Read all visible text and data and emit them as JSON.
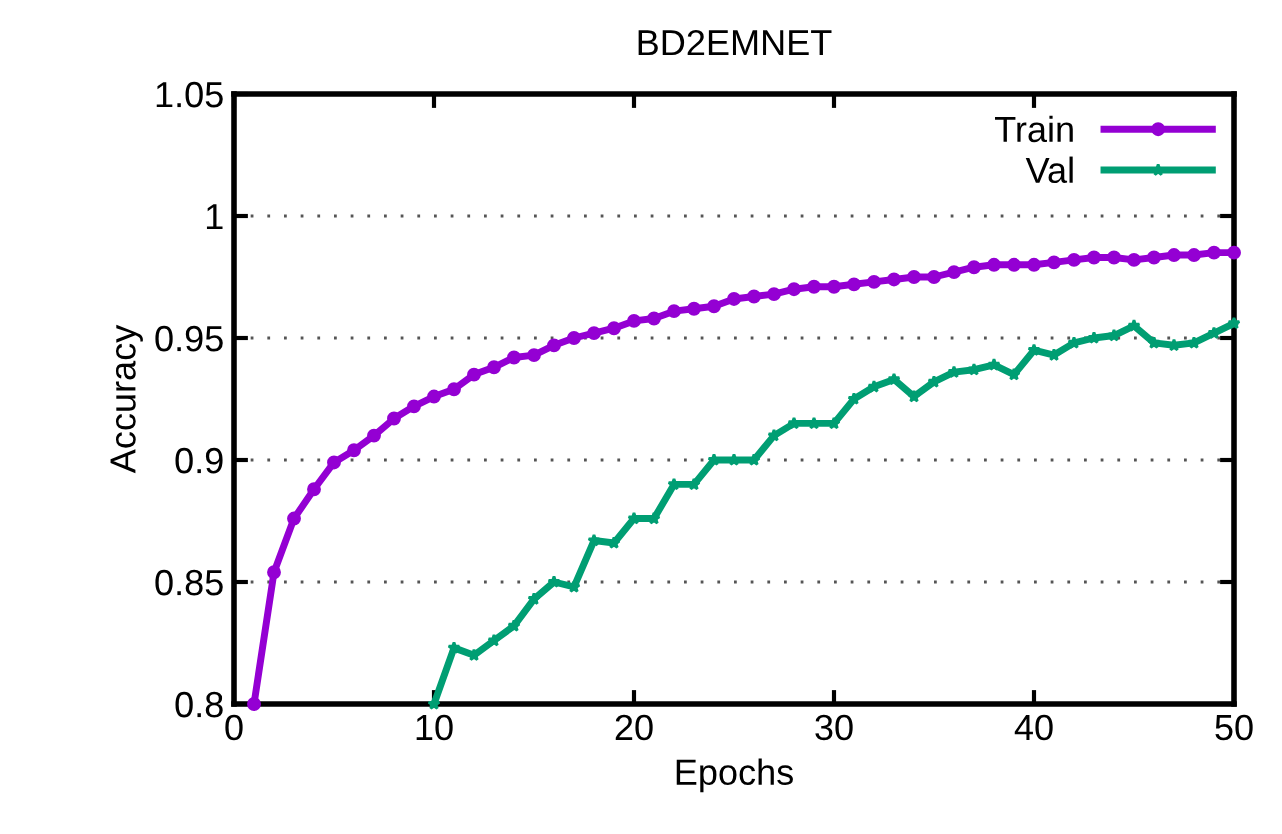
{
  "chart_data": {
    "type": "line",
    "title": "BD2EMNET",
    "xlabel": "Epochs",
    "ylabel": "Accuracy",
    "xlim": [
      0,
      50
    ],
    "xticks": [
      0,
      10,
      20,
      30,
      40,
      50
    ],
    "ylim": [
      0.8,
      1.05
    ],
    "yticks": [
      {
        "value": 0.8,
        "label": "0.8"
      },
      {
        "value": 0.85,
        "label": "0.85"
      },
      {
        "value": 0.9,
        "label": "0.9"
      },
      {
        "value": 0.95,
        "label": "0.95"
      },
      {
        "value": 1,
        "label": "1"
      },
      {
        "value": 1.05,
        "label": "1.05"
      }
    ],
    "grid": "y",
    "legend": "top right",
    "line_style": "solid",
    "series": [
      {
        "name": "Train",
        "color": "#9400d3",
        "marker": "circle",
        "x": [
          1,
          2,
          3,
          4,
          5,
          6,
          7,
          8,
          9,
          10,
          11,
          12,
          13,
          14,
          15,
          16,
          17,
          18,
          19,
          20,
          21,
          22,
          23,
          24,
          25,
          26,
          27,
          28,
          29,
          30,
          31,
          32,
          33,
          34,
          35,
          36,
          37,
          38,
          39,
          40,
          41,
          42,
          43,
          44,
          45,
          46,
          47,
          48,
          49,
          50
        ],
        "values": [
          0.8,
          0.854,
          0.876,
          0.888,
          0.899,
          0.904,
          0.91,
          0.917,
          0.922,
          0.926,
          0.929,
          0.935,
          0.938,
          0.942,
          0.943,
          0.947,
          0.95,
          0.952,
          0.954,
          0.957,
          0.958,
          0.961,
          0.962,
          0.963,
          0.966,
          0.967,
          0.968,
          0.97,
          0.971,
          0.971,
          0.972,
          0.973,
          0.974,
          0.975,
          0.975,
          0.977,
          0.979,
          0.98,
          0.98,
          0.98,
          0.981,
          0.982,
          0.983,
          0.983,
          0.982,
          0.983,
          0.984,
          0.984,
          0.985,
          0.985
        ]
      },
      {
        "name": "Val",
        "color": "#009e73",
        "marker": "star",
        "x": [
          10,
          11,
          12,
          13,
          14,
          15,
          16,
          17,
          18,
          19,
          20,
          21,
          22,
          23,
          24,
          25,
          26,
          27,
          28,
          29,
          30,
          31,
          32,
          33,
          34,
          35,
          36,
          37,
          38,
          39,
          40,
          41,
          42,
          43,
          44,
          45,
          46,
          47,
          48,
          49,
          50
        ],
        "values": [
          0.8,
          0.823,
          0.82,
          0.826,
          0.832,
          0.843,
          0.85,
          0.848,
          0.867,
          0.866,
          0.876,
          0.876,
          0.89,
          0.89,
          0.9,
          0.9,
          0.9,
          0.91,
          0.915,
          0.915,
          0.915,
          0.925,
          0.93,
          0.933,
          0.926,
          0.932,
          0.936,
          0.937,
          0.939,
          0.935,
          0.945,
          0.943,
          0.948,
          0.95,
          0.951,
          0.955,
          0.948,
          0.947,
          0.948,
          0.952,
          0.956
        ]
      }
    ]
  }
}
